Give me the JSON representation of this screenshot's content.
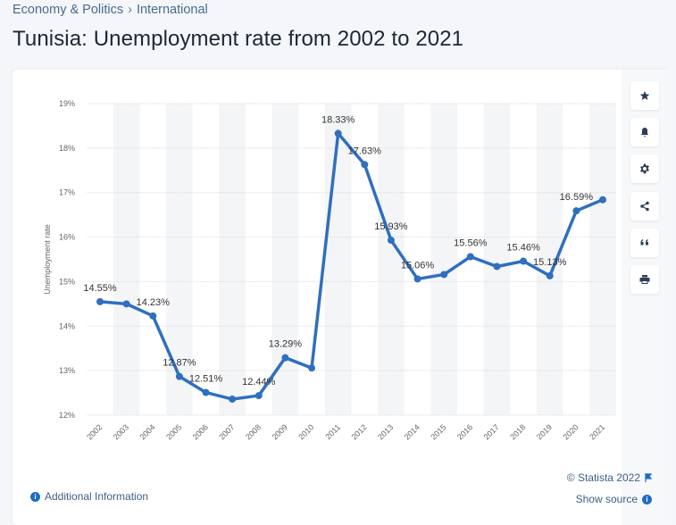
{
  "breadcrumb": {
    "items": [
      "Economy & Politics",
      "International"
    ],
    "separator": "›"
  },
  "page": {
    "title": "Tunisia: Unemployment rate from 2002 to 2021"
  },
  "toolbar": {
    "buttons": [
      {
        "icon": "star-icon",
        "label": "Favorite"
      },
      {
        "icon": "bell-icon",
        "label": "Notifications"
      },
      {
        "icon": "gear-icon",
        "label": "Settings"
      },
      {
        "icon": "share-icon",
        "label": "Share"
      },
      {
        "icon": "quote-icon",
        "label": "Cite"
      },
      {
        "icon": "print-icon",
        "label": "Print"
      }
    ]
  },
  "footer": {
    "additional_info": "Additional Information",
    "copyright": "© Statista 2022",
    "show_source": "Show source"
  },
  "colors": {
    "line": "#2f6fbf",
    "accent": "#1f6cc4",
    "band": "#f4f5f7",
    "grid": "#d9dbe0"
  },
  "chart_data": {
    "type": "line",
    "title": "Tunisia: Unemployment rate from 2002 to 2021",
    "xlabel": "",
    "ylabel": "Unemployment rate",
    "ylim": [
      12,
      19
    ],
    "yticks": [
      12,
      13,
      14,
      15,
      16,
      17,
      18,
      19
    ],
    "ytick_labels": [
      "12%",
      "13%",
      "14%",
      "15%",
      "16%",
      "17%",
      "18%",
      "19%"
    ],
    "grid": true,
    "categories": [
      "2002",
      "2003",
      "2004",
      "2005",
      "2006",
      "2007",
      "2008",
      "2009",
      "2010",
      "2011",
      "2012",
      "2013",
      "2014",
      "2015",
      "2016",
      "2017",
      "2018",
      "2019",
      "2020",
      "2021"
    ],
    "series": [
      {
        "name": "Unemployment rate",
        "values": [
          14.55,
          14.5,
          14.23,
          12.87,
          12.51,
          12.36,
          12.44,
          13.29,
          13.06,
          18.33,
          17.63,
          15.93,
          15.06,
          15.16,
          15.56,
          15.34,
          15.46,
          15.13,
          16.59,
          16.84
        ],
        "labels": [
          "14.55%",
          null,
          "14.23%",
          "12.87%",
          "12.51%",
          null,
          "12.44%",
          "13.29%",
          null,
          "18.33%",
          "17.63%",
          "15.93%",
          "15.06%",
          null,
          "15.56%",
          null,
          "15.46%",
          "15.13%",
          "16.59%",
          null
        ]
      }
    ]
  }
}
